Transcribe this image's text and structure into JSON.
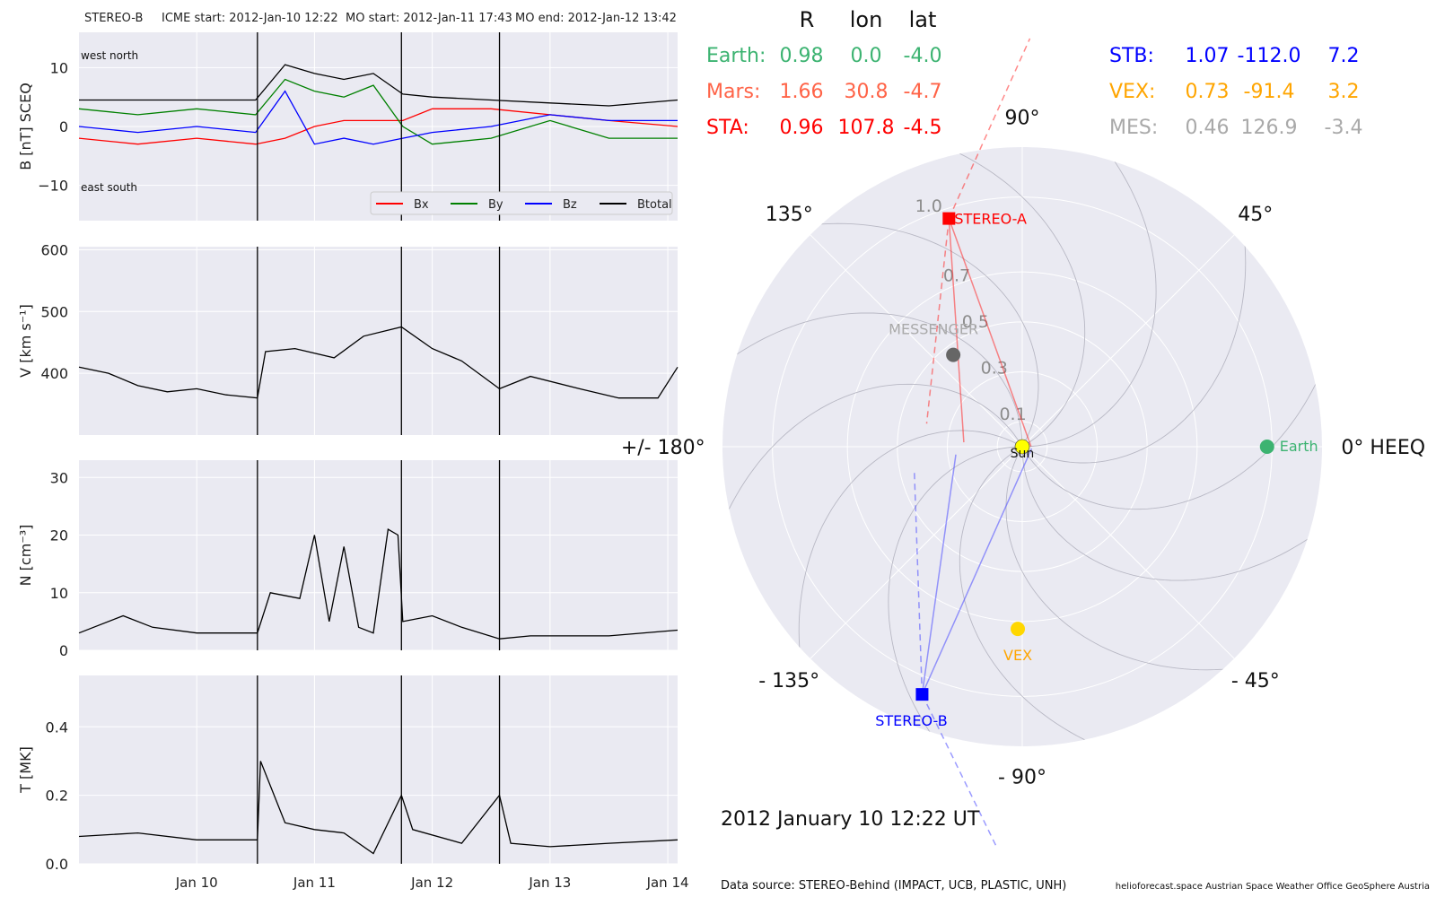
{
  "header": {
    "spacecraft": "STEREO-B",
    "icme_start": "ICME start: 2012-Jan-10 12:22",
    "mo_start": "MO start: 2012-Jan-11 17:43",
    "mo_end": "MO end: 2012-Jan-12 13:42"
  },
  "positions_table": {
    "columns": [
      "R",
      "lon",
      "lat"
    ],
    "rows_left": [
      {
        "label": "Earth:",
        "R": "0.98",
        "lon": "0.0",
        "lat": "-4.0",
        "color": "#3cb371"
      },
      {
        "label": "Mars:",
        "R": "1.66",
        "lon": "30.8",
        "lat": "-4.7",
        "color": "#ff6347"
      },
      {
        "label": "STA:",
        "R": "0.96",
        "lon": "107.8",
        "lat": "-4.5",
        "color": "#ff0000"
      }
    ],
    "rows_right": [
      {
        "label": "STB:",
        "R": "1.07",
        "lon": "-112.0",
        "lat": "7.2",
        "color": "#0000ff"
      },
      {
        "label": "VEX:",
        "R": "0.73",
        "lon": "-91.4",
        "lat": "3.2",
        "color": "#ffa500"
      },
      {
        "label": "MES:",
        "R": "0.46",
        "lon": "126.9",
        "lat": "-3.4",
        "color": "#a9a9a9"
      }
    ]
  },
  "polar": {
    "angle_labels": [
      {
        "deg": 0,
        "text": "0° HEEQ"
      },
      {
        "deg": 45,
        "text": "45°"
      },
      {
        "deg": 90,
        "text": "90°"
      },
      {
        "deg": 135,
        "text": "135°"
      },
      {
        "deg": 180,
        "text": "+/- 180°"
      },
      {
        "deg": 225,
        "text": "- 135°"
      },
      {
        "deg": 270,
        "text": "- 90°"
      },
      {
        "deg": 315,
        "text": "- 45°"
      }
    ],
    "radial_ticks": [
      {
        "r": 0.1,
        "text": "0.1"
      },
      {
        "r": 0.3,
        "text": "0.3"
      },
      {
        "r": 0.5,
        "text": "0.5"
      },
      {
        "r": 0.7,
        "text": "0.7"
      },
      {
        "r": 1.0,
        "text": "1.0"
      }
    ],
    "r_max": 1.2,
    "bodies": [
      {
        "name": "Sun",
        "label": "Sun",
        "r": 0.0,
        "lon": 0,
        "color": "#ffff00",
        "marker": "circle"
      },
      {
        "name": "Earth",
        "label": "Earth",
        "r": 0.98,
        "lon": 0.0,
        "color": "#3cb371",
        "marker": "circle"
      },
      {
        "name": "STEREO-A",
        "label": "STEREO-A",
        "r": 0.96,
        "lon": 107.8,
        "color": "#ff0000",
        "marker": "square"
      },
      {
        "name": "STEREO-B",
        "label": "STEREO-B",
        "r": 1.07,
        "lon": -112.0,
        "color": "#0000ff",
        "marker": "square"
      },
      {
        "name": "VEX",
        "label": "VEX",
        "r": 0.73,
        "lon": -91.4,
        "color": "#ffd700",
        "label_color": "#ffa500",
        "marker": "circle"
      },
      {
        "name": "MESSENGER",
        "label": "MESSENGER",
        "r": 0.46,
        "lon": 126.9,
        "color": "#666666",
        "label_color": "#a9a9a9",
        "marker": "circle"
      }
    ],
    "date": "2012 January 10  12:22 UT"
  },
  "footer": {
    "data_source": "Data source: STEREO-Behind (IMPACT, UCB, PLASTIC, UNH)",
    "credits": "helioforecast.space   Austrian Space Weather Office   GeoSphere Austria"
  },
  "chart_data": [
    {
      "type": "line",
      "title": "",
      "ylabel": "B [nT] SCEQ",
      "ylim": [
        -16,
        16
      ],
      "yticks": [
        -10,
        0,
        10
      ],
      "ytick_labels": [
        "−10",
        "0",
        "10"
      ],
      "annotations": {
        "top": "west    north",
        "bottom": "east    south"
      },
      "legend": "lower right",
      "x_range": [
        "2012-01-09 00:00",
        "2012-01-14 02:00"
      ],
      "event_lines": [
        "2012-01-10 12:22",
        "2012-01-11 17:43",
        "2012-01-12 13:42"
      ],
      "series": [
        {
          "name": "Bx",
          "color": "#ff0000",
          "x": [
            "2012-01-09 00:00",
            "2012-01-09 12:00",
            "2012-01-10 00:00",
            "2012-01-10 12:00",
            "2012-01-10 18:00",
            "2012-01-11 00:00",
            "2012-01-11 06:00",
            "2012-01-11 12:00",
            "2012-01-11 18:00",
            "2012-01-12 00:00",
            "2012-01-12 12:00",
            "2012-01-13 00:00",
            "2012-01-13 12:00",
            "2012-01-14 02:00"
          ],
          "y": [
            -2,
            -3,
            -2,
            -3,
            -2,
            0,
            1,
            1,
            1,
            3,
            3,
            2,
            1,
            0
          ]
        },
        {
          "name": "By",
          "color": "#008000",
          "x": [
            "2012-01-09 00:00",
            "2012-01-09 12:00",
            "2012-01-10 00:00",
            "2012-01-10 12:00",
            "2012-01-10 18:00",
            "2012-01-11 00:00",
            "2012-01-11 06:00",
            "2012-01-11 12:00",
            "2012-01-11 18:00",
            "2012-01-12 00:00",
            "2012-01-12 12:00",
            "2012-01-13 00:00",
            "2012-01-13 12:00",
            "2012-01-14 02:00"
          ],
          "y": [
            3,
            2,
            3,
            2,
            8,
            6,
            5,
            7,
            0,
            -3,
            -2,
            1,
            -2,
            -2
          ]
        },
        {
          "name": "Bz",
          "color": "#0000ff",
          "x": [
            "2012-01-09 00:00",
            "2012-01-09 12:00",
            "2012-01-10 00:00",
            "2012-01-10 12:00",
            "2012-01-10 18:00",
            "2012-01-11 00:00",
            "2012-01-11 06:00",
            "2012-01-11 12:00",
            "2012-01-11 18:00",
            "2012-01-12 00:00",
            "2012-01-12 12:00",
            "2012-01-13 00:00",
            "2012-01-13 12:00",
            "2012-01-14 02:00"
          ],
          "y": [
            0,
            -1,
            0,
            -1,
            6,
            -3,
            -2,
            -3,
            -2,
            -1,
            0,
            2,
            1,
            1
          ]
        },
        {
          "name": "Btotal",
          "color": "#000000",
          "x": [
            "2012-01-09 00:00",
            "2012-01-09 12:00",
            "2012-01-10 00:00",
            "2012-01-10 12:00",
            "2012-01-10 18:00",
            "2012-01-11 00:00",
            "2012-01-11 06:00",
            "2012-01-11 12:00",
            "2012-01-11 18:00",
            "2012-01-12 00:00",
            "2012-01-12 12:00",
            "2012-01-13 00:00",
            "2012-01-13 12:00",
            "2012-01-14 02:00"
          ],
          "y": [
            4.5,
            4.5,
            4.5,
            4.5,
            10.5,
            9,
            8,
            9,
            5.5,
            5,
            4.5,
            4,
            3.5,
            4.5
          ]
        }
      ]
    },
    {
      "type": "line",
      "title": "",
      "ylabel": "V [km s⁻¹]",
      "ylim": [
        300,
        605
      ],
      "yticks": [
        400,
        500,
        600
      ],
      "ytick_labels": [
        "400",
        "500",
        "600"
      ],
      "x_range": [
        "2012-01-09 00:00",
        "2012-01-14 02:00"
      ],
      "event_lines": [
        "2012-01-10 12:22",
        "2012-01-11 17:43",
        "2012-01-12 13:42"
      ],
      "series": [
        {
          "name": "V",
          "color": "#000000",
          "x": [
            "2012-01-09 00:00",
            "2012-01-09 06:00",
            "2012-01-09 12:00",
            "2012-01-09 18:00",
            "2012-01-10 00:00",
            "2012-01-10 06:00",
            "2012-01-10 12:22",
            "2012-01-10 14:00",
            "2012-01-10 20:00",
            "2012-01-11 04:00",
            "2012-01-11 10:00",
            "2012-01-11 17:43",
            "2012-01-12 00:00",
            "2012-01-12 06:00",
            "2012-01-12 13:42",
            "2012-01-12 20:00",
            "2012-01-13 06:00",
            "2012-01-13 14:00",
            "2012-01-13 22:00",
            "2012-01-14 02:00"
          ],
          "y": [
            410,
            400,
            380,
            370,
            375,
            365,
            360,
            435,
            440,
            425,
            460,
            475,
            440,
            420,
            375,
            395,
            375,
            360,
            360,
            410
          ]
        }
      ]
    },
    {
      "type": "line",
      "title": "",
      "ylabel": "N [cm⁻³]",
      "ylim": [
        0,
        33
      ],
      "yticks": [
        0,
        10,
        20,
        30
      ],
      "ytick_labels": [
        "0",
        "10",
        "20",
        "30"
      ],
      "x_range": [
        "2012-01-09 00:00",
        "2012-01-14 02:00"
      ],
      "event_lines": [
        "2012-01-10 12:22",
        "2012-01-11 17:43",
        "2012-01-12 13:42"
      ],
      "series": [
        {
          "name": "N",
          "color": "#000000",
          "x": [
            "2012-01-09 00:00",
            "2012-01-09 09:00",
            "2012-01-09 15:00",
            "2012-01-10 00:00",
            "2012-01-10 12:22",
            "2012-01-10 15:00",
            "2012-01-10 21:00",
            "2012-01-11 00:00",
            "2012-01-11 03:00",
            "2012-01-11 06:00",
            "2012-01-11 09:00",
            "2012-01-11 12:00",
            "2012-01-11 15:00",
            "2012-01-11 17:00",
            "2012-01-11 18:00",
            "2012-01-12 00:00",
            "2012-01-12 06:00",
            "2012-01-12 13:42",
            "2012-01-12 20:00",
            "2012-01-13 12:00",
            "2012-01-14 02:00"
          ],
          "y": [
            3,
            6,
            4,
            3,
            3,
            10,
            9,
            20,
            5,
            18,
            4,
            3,
            21,
            20,
            5,
            6,
            4,
            2,
            2.5,
            2.5,
            3.5
          ]
        }
      ]
    },
    {
      "type": "line",
      "title": "",
      "ylabel": "T [MK]",
      "ylim": [
        0,
        0.55
      ],
      "yticks": [
        0.0,
        0.2,
        0.4
      ],
      "ytick_labels": [
        "0.0",
        "0.2",
        "0.4"
      ],
      "xticks": [
        "2012-01-10 00:00",
        "2012-01-11 00:00",
        "2012-01-12 00:00",
        "2012-01-13 00:00",
        "2012-01-14 00:00"
      ],
      "xtick_labels": [
        "Jan 10",
        "Jan 11",
        "Jan 12",
        "Jan 13",
        "Jan 14"
      ],
      "x_range": [
        "2012-01-09 00:00",
        "2012-01-14 02:00"
      ],
      "event_lines": [
        "2012-01-10 12:22",
        "2012-01-11 17:43",
        "2012-01-12 13:42"
      ],
      "series": [
        {
          "name": "T",
          "color": "#000000",
          "x": [
            "2012-01-09 00:00",
            "2012-01-09 12:00",
            "2012-01-10 00:00",
            "2012-01-10 12:22",
            "2012-01-10 13:00",
            "2012-01-10 18:00",
            "2012-01-11 00:00",
            "2012-01-11 06:00",
            "2012-01-11 12:00",
            "2012-01-11 17:43",
            "2012-01-11 20:00",
            "2012-01-12 06:00",
            "2012-01-12 13:42",
            "2012-01-12 16:00",
            "2012-01-13 00:00",
            "2012-01-13 12:00",
            "2012-01-14 02:00"
          ],
          "y": [
            0.08,
            0.09,
            0.07,
            0.07,
            0.3,
            0.12,
            0.1,
            0.09,
            0.03,
            0.2,
            0.1,
            0.06,
            0.2,
            0.06,
            0.05,
            0.06,
            0.07
          ]
        }
      ]
    }
  ]
}
